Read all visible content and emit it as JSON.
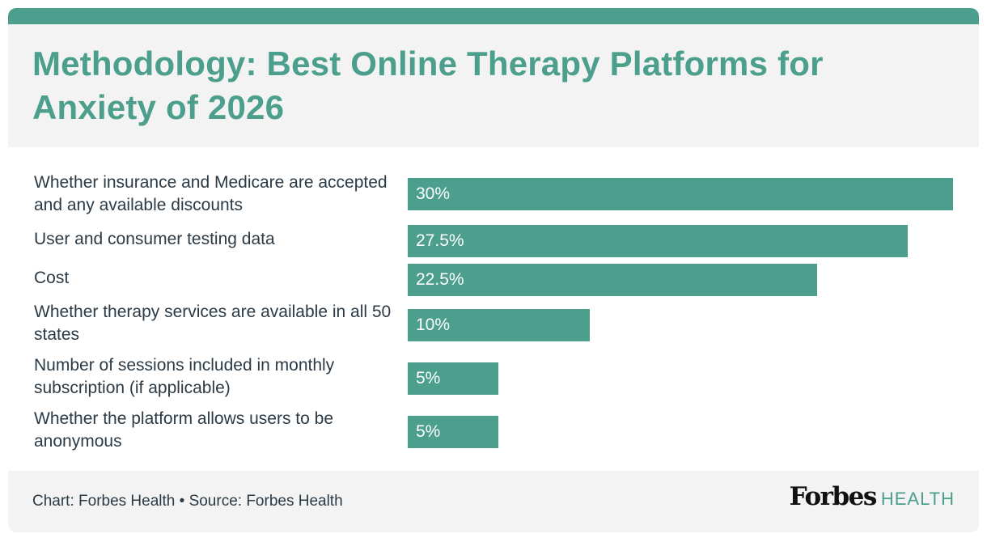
{
  "colors": {
    "accent": "#4b9f8c",
    "background_panel": "#f2f3f2",
    "text_dark": "#2b3a45"
  },
  "header": {
    "title": "Methodology: Best Online Therapy Platforms for Anxiety of 2026"
  },
  "footer": {
    "source": "Chart: Forbes Health • Source: Forbes Health",
    "logo_wordmark": "Forbes",
    "logo_suffix": "HEALTH"
  },
  "chart_data": {
    "type": "bar",
    "orientation": "horizontal",
    "title": "Methodology: Best Online Therapy Platforms for Anxiety of 2026",
    "xlabel": "",
    "ylabel": "",
    "unit": "%",
    "xlim": [
      0,
      30
    ],
    "grid": false,
    "legend": "none",
    "categories": [
      "Whether insurance and Medicare are accepted and any available discounts",
      "User and consumer testing data",
      "Cost",
      "Whether therapy services are available in all 50 states",
      "Number of sessions included in monthly subscription (if applicable)",
      "Whether the platform allows users to be anonymous"
    ],
    "values": [
      30,
      27.5,
      22.5,
      10,
      5,
      5
    ],
    "value_labels": [
      "30%",
      "27.5%",
      "22.5%",
      "10%",
      "5%",
      "5%"
    ]
  }
}
